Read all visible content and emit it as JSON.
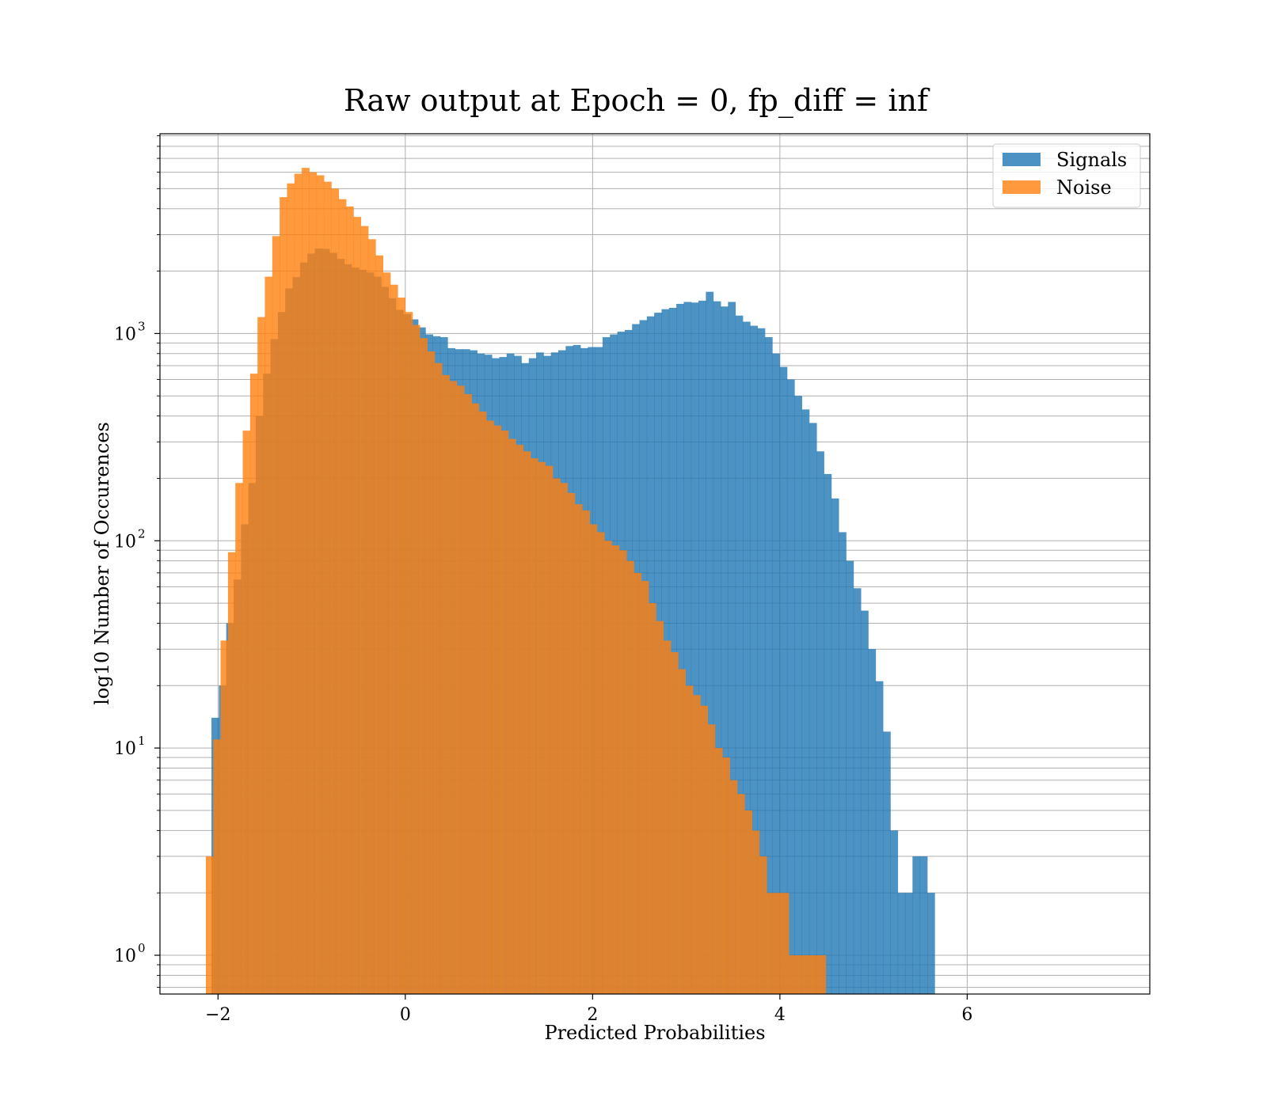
{
  "chart_data": {
    "type": "histogram",
    "title": "Raw output at Epoch = 0, fp_diff = inf",
    "xlabel": "Predicted Probabilities",
    "ylabel": "log10 Number of Occurences",
    "xscale": "linear",
    "yscale": "log",
    "xlim": [
      -2.62,
      7.95
    ],
    "ylim": [
      0.65,
      9200
    ],
    "xticks": [
      -2,
      0,
      2,
      4,
      6
    ],
    "xtick_labels": [
      "−2",
      "0",
      "2",
      "4",
      "6"
    ],
    "yticks": [
      1,
      10,
      100,
      1000
    ],
    "ytick_labels": [
      {
        "base": "10",
        "exp": "0"
      },
      {
        "base": "10",
        "exp": "1"
      },
      {
        "base": "10",
        "exp": "2"
      },
      {
        "base": "10",
        "exp": "3"
      }
    ],
    "grid": true,
    "legend_position": "top-right",
    "series": [
      {
        "name": "Signals",
        "color": "#1f77b4",
        "alpha": 0.8,
        "bin_start": -2.07,
        "bin_width": 0.0788,
        "counts": [
          14,
          20,
          40,
          65,
          120,
          190,
          400,
          640,
          940,
          1270,
          1650,
          1870,
          2200,
          2430,
          2570,
          2560,
          2450,
          2290,
          2160,
          2080,
          2030,
          1970,
          1880,
          1680,
          1480,
          1300,
          1240,
          1170,
          1070,
          990,
          970,
          960,
          850,
          840,
          840,
          830,
          800,
          790,
          760,
          770,
          800,
          780,
          720,
          760,
          810,
          780,
          810,
          830,
          870,
          880,
          850,
          860,
          860,
          960,
          990,
          1020,
          1040,
          1110,
          1160,
          1210,
          1260,
          1310,
          1330,
          1390,
          1420,
          1410,
          1440,
          1590,
          1430,
          1350,
          1420,
          1220,
          1140,
          1090,
          1060,
          960,
          800,
          690,
          600,
          500,
          430,
          370,
          270,
          210,
          160,
          110,
          80,
          59,
          46,
          30,
          21,
          12,
          4,
          2,
          2,
          3,
          3,
          2
        ]
      },
      {
        "name": "Noise",
        "color": "#ff7f0e",
        "alpha": 0.8,
        "bin_start": -2.13,
        "bin_width": 0.0788,
        "counts": [
          3,
          11,
          33,
          88,
          190,
          340,
          640,
          1200,
          1880,
          2950,
          4550,
          5300,
          5900,
          6300,
          6000,
          5800,
          5400,
          5000,
          4450,
          4100,
          3650,
          3300,
          2850,
          2380,
          1970,
          1720,
          1490,
          1270,
          1100,
          950,
          820,
          720,
          630,
          590,
          560,
          510,
          460,
          420,
          380,
          360,
          340,
          310,
          290,
          270,
          250,
          240,
          230,
          200,
          190,
          170,
          150,
          140,
          120,
          110,
          100,
          95,
          90,
          80,
          70,
          64,
          50,
          41,
          33,
          29,
          24,
          20,
          18,
          16,
          13,
          10,
          9,
          7,
          6,
          5,
          4,
          3,
          2,
          2,
          2,
          1,
          1,
          1,
          1,
          1
        ]
      }
    ]
  }
}
